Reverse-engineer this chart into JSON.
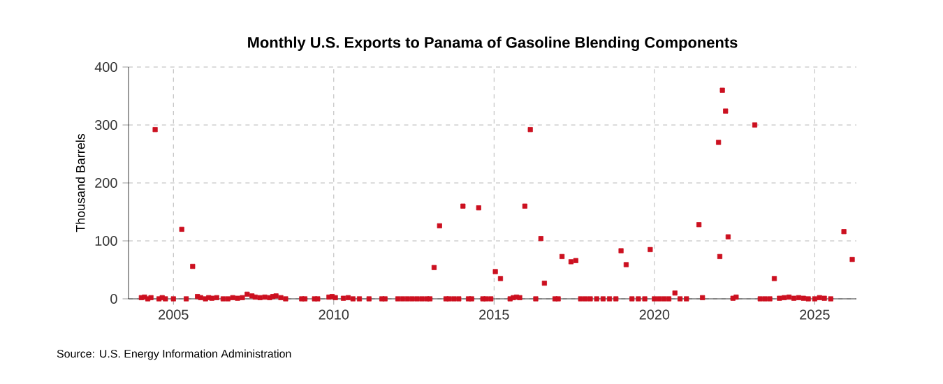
{
  "chart_data": {
    "type": "scatter",
    "title": "Monthly U.S. Exports to Panama of Gasoline Blending Components",
    "ylabel": "Thousand Barrels",
    "annotations": [
      "Source: U.S. Energy Information Administration"
    ],
    "xlim": [
      2003.6,
      2026.3
    ],
    "ylim": [
      0,
      400
    ],
    "xticks": [
      2005,
      2010,
      2015,
      2020,
      2025
    ],
    "yticks": [
      0,
      100,
      200,
      300,
      400
    ],
    "grid": true,
    "marker": "square",
    "series": [
      {
        "color": "#cc1020",
        "x": [
          2004.0,
          2004.1,
          2004.2,
          2004.3,
          2004.43,
          2004.55,
          2004.65,
          2004.75,
          2005.0,
          2005.26,
          2005.4,
          2005.6,
          2005.75,
          2005.85,
          2006.0,
          2006.1,
          2006.2,
          2006.35,
          2006.55,
          2006.7,
          2006.85,
          2007.0,
          2007.15,
          2007.3,
          2007.45,
          2007.55,
          2007.7,
          2007.85,
          2008.0,
          2008.1,
          2008.2,
          2008.35,
          2008.5,
          2009.0,
          2009.1,
          2009.4,
          2009.5,
          2009.85,
          2009.95,
          2010.05,
          2010.3,
          2010.45,
          2010.6,
          2010.8,
          2011.1,
          2011.5,
          2011.6,
          2012.0,
          2012.15,
          2012.3,
          2012.45,
          2012.6,
          2012.75,
          2012.9,
          2013.0,
          2013.13,
          2013.3,
          2013.5,
          2013.6,
          2013.75,
          2013.9,
          2014.03,
          2014.2,
          2014.3,
          2014.52,
          2014.65,
          2014.75,
          2014.9,
          2015.04,
          2015.2,
          2015.5,
          2015.6,
          2015.7,
          2015.8,
          2015.96,
          2016.13,
          2016.3,
          2016.46,
          2016.57,
          2016.9,
          2017.0,
          2017.12,
          2017.4,
          2017.55,
          2017.7,
          2017.85,
          2018.0,
          2018.2,
          2018.4,
          2018.6,
          2018.8,
          2018.96,
          2019.12,
          2019.3,
          2019.5,
          2019.7,
          2019.87,
          2020.0,
          2020.15,
          2020.3,
          2020.45,
          2020.64,
          2020.8,
          2021.0,
          2021.39,
          2021.5,
          2022.0,
          2022.04,
          2022.12,
          2022.22,
          2022.3,
          2022.45,
          2022.55,
          2023.13,
          2023.3,
          2023.45,
          2023.6,
          2023.74,
          2023.9,
          2024.05,
          2024.2,
          2024.35,
          2024.5,
          2024.65,
          2024.8,
          2025.0,
          2025.15,
          2025.3,
          2025.5,
          2025.91,
          2026.17
        ],
        "values": [
          2,
          3,
          0,
          2,
          292,
          0,
          2,
          0,
          0,
          120,
          0,
          56,
          4,
          2,
          0,
          2,
          1,
          2,
          0,
          0,
          2,
          1,
          2,
          8,
          5,
          3,
          2,
          3,
          2,
          4,
          5,
          2,
          0,
          0,
          0,
          0,
          0,
          3,
          4,
          2,
          1,
          2,
          0,
          0,
          0,
          0,
          0,
          0,
          0,
          0,
          0,
          0,
          0,
          0,
          0,
          54,
          126,
          0,
          0,
          0,
          0,
          160,
          0,
          0,
          157,
          0,
          0,
          0,
          47,
          35,
          0,
          2,
          3,
          2,
          160,
          292,
          0,
          104,
          27,
          0,
          0,
          73,
          64,
          66,
          0,
          0,
          0,
          0,
          0,
          0,
          0,
          83,
          59,
          0,
          0,
          0,
          85,
          0,
          0,
          0,
          0,
          10,
          0,
          0,
          128,
          2,
          270,
          73,
          360,
          324,
          107,
          1,
          3,
          300,
          0,
          0,
          0,
          35,
          1,
          2,
          3,
          1,
          2,
          1,
          0,
          0,
          2,
          1,
          0,
          116,
          68
        ]
      }
    ]
  }
}
